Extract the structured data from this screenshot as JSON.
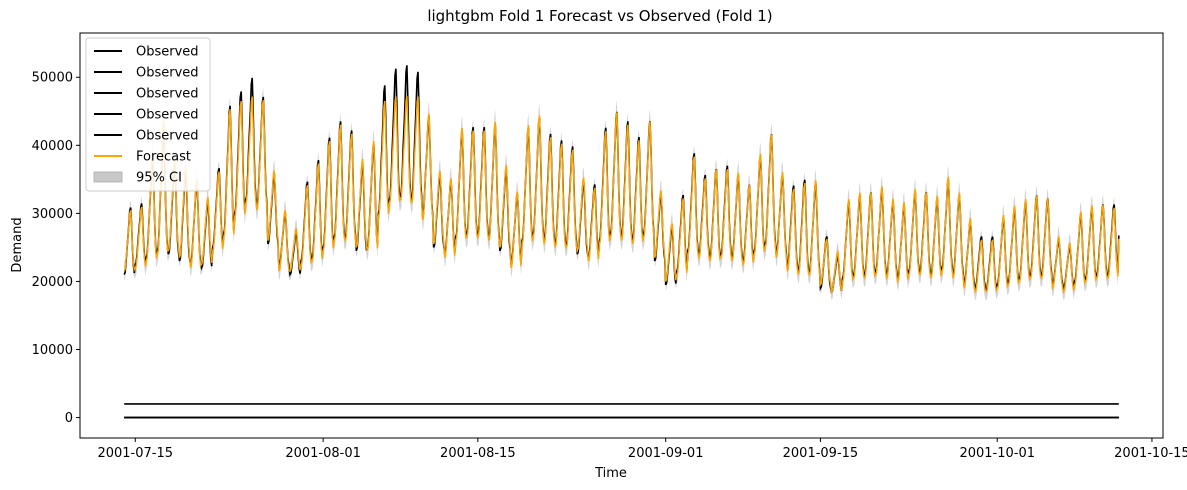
{
  "chart_data": {
    "type": "line",
    "title": "lightgbm Fold 1 Forecast vs Observed (Fold 1)",
    "xlabel": "Time",
    "ylabel": "Demand",
    "xlim": [
      "2001-07-10",
      "2001-10-16"
    ],
    "ylim": [
      -3000,
      56500
    ],
    "x_ticks": [
      "2001-07-15",
      "2001-08-01",
      "2001-08-15",
      "2001-09-01",
      "2001-09-15",
      "2001-10-01",
      "2001-10-15"
    ],
    "y_ticks": [
      0,
      10000,
      20000,
      30000,
      40000,
      50000
    ],
    "x_range": [
      "2001-07-14",
      "2001-10-12"
    ],
    "grid": false,
    "legend_position": "top-left",
    "legend": [
      "Observed",
      "Observed",
      "Observed",
      "Observed",
      "Observed",
      "Forecast",
      "95% CI"
    ],
    "colors": {
      "observed": "#000000",
      "forecast": "#ffa500",
      "ci": "#c8c8c8"
    },
    "flat_series": [
      {
        "name": "Observed",
        "value": 2000
      },
      {
        "name": "Observed",
        "value": 0
      },
      {
        "name": "Observed",
        "value": 0
      },
      {
        "name": "Observed",
        "value": 0
      }
    ],
    "daily_peaks": {
      "dates": [
        "2001-07-14",
        "2001-07-15",
        "2001-07-16",
        "2001-07-17",
        "2001-07-18",
        "2001-07-19",
        "2001-07-20",
        "2001-07-21",
        "2001-07-22",
        "2001-07-23",
        "2001-07-24",
        "2001-07-25",
        "2001-07-26",
        "2001-07-27",
        "2001-07-28",
        "2001-07-29",
        "2001-07-30",
        "2001-07-31",
        "2001-08-01",
        "2001-08-02",
        "2001-08-03",
        "2001-08-04",
        "2001-08-05",
        "2001-08-06",
        "2001-08-07",
        "2001-08-08",
        "2001-08-09",
        "2001-08-10",
        "2001-08-11",
        "2001-08-12",
        "2001-08-13",
        "2001-08-14",
        "2001-08-15",
        "2001-08-16",
        "2001-08-17",
        "2001-08-18",
        "2001-08-19",
        "2001-08-20",
        "2001-08-21",
        "2001-08-22",
        "2001-08-23",
        "2001-08-24",
        "2001-08-25",
        "2001-08-26",
        "2001-08-27",
        "2001-08-28",
        "2001-08-29",
        "2001-08-30",
        "2001-08-31",
        "2001-09-01",
        "2001-09-02",
        "2001-09-03",
        "2001-09-04",
        "2001-09-05",
        "2001-09-06",
        "2001-09-07",
        "2001-09-08",
        "2001-09-09",
        "2001-09-10",
        "2001-09-11",
        "2001-09-12",
        "2001-09-13",
        "2001-09-14",
        "2001-09-15",
        "2001-09-16",
        "2001-09-17",
        "2001-09-18",
        "2001-09-19",
        "2001-09-20",
        "2001-09-21",
        "2001-09-22",
        "2001-09-23",
        "2001-09-24",
        "2001-09-25",
        "2001-09-26",
        "2001-09-27",
        "2001-09-28",
        "2001-09-29",
        "2001-09-30",
        "2001-10-01",
        "2001-10-02",
        "2001-10-03",
        "2001-10-04",
        "2001-10-05",
        "2001-10-06",
        "2001-10-07",
        "2001-10-08",
        "2001-10-09",
        "2001-10-10",
        "2001-10-11"
      ],
      "observed_max": [
        32000,
        32500,
        40000,
        45000,
        39000,
        38000,
        36000,
        33000,
        38000,
        48000,
        50000,
        52000,
        49000,
        37000,
        31000,
        28000,
        36000,
        39500,
        43000,
        45500,
        44000,
        39000,
        42000,
        51000,
        53500,
        54000,
        53000,
        46000,
        37000,
        36000,
        44000,
        44500,
        44500,
        45000,
        38000,
        34000,
        44500,
        46000,
        43500,
        42500,
        41500,
        36000,
        35500,
        44500,
        47000,
        45500,
        43000,
        45500,
        34000,
        29000,
        34000,
        40500,
        37000,
        38000,
        38500,
        37000,
        35500,
        40000,
        43500,
        37000,
        35500,
        36500,
        36000,
        27500,
        24500,
        33000,
        34000,
        34500,
        35000,
        33000,
        32500,
        34500,
        34500,
        33500,
        36500,
        34000,
        30000,
        27500,
        27500,
        30500,
        32000,
        33000,
        34000,
        33500,
        27000,
        26000,
        31000,
        32000,
        32500,
        32500
      ],
      "observed_min": [
        21000,
        22500,
        23500,
        24500,
        24000,
        23000,
        22500,
        22000,
        25000,
        27000,
        30000,
        32000,
        31000,
        25500,
        22000,
        21000,
        23000,
        23500,
        25000,
        26500,
        26500,
        24500,
        25000,
        30000,
        32000,
        32500,
        32000,
        29500,
        25000,
        24000,
        26500,
        27000,
        27000,
        26500,
        24500,
        22500,
        26000,
        27000,
        26000,
        25500,
        25500,
        24000,
        23500,
        26000,
        27000,
        26500,
        26000,
        27000,
        23000,
        19500,
        21500,
        24500,
        24000,
        23500,
        24000,
        23500,
        23000,
        24500,
        25500,
        24000,
        22000,
        21500,
        21500,
        19000,
        18500,
        20500,
        21000,
        21000,
        21500,
        21000,
        20500,
        21500,
        21500,
        21000,
        22000,
        21000,
        19500,
        19000,
        18800,
        19500,
        20000,
        20500,
        21000,
        21000,
        19500,
        19000,
        20000,
        20500,
        21000,
        21000
      ],
      "forecast_max": [
        31500,
        32000,
        40500,
        46000,
        39500,
        38500,
        36500,
        33500,
        37500,
        47500,
        48500,
        49000,
        48500,
        37500,
        31500,
        28500,
        35500,
        39000,
        42500,
        45000,
        43500,
        39500,
        42500,
        48500,
        49000,
        49000,
        49000,
        46500,
        37500,
        36500,
        44500,
        44000,
        44000,
        45500,
        38500,
        34500,
        45000,
        46500,
        43000,
        42000,
        41000,
        36500,
        35000,
        44000,
        47000,
        45000,
        42500,
        45500,
        34500,
        29500,
        33500,
        40000,
        36500,
        38000,
        38000,
        37500,
        35500,
        40500,
        43500,
        37500,
        35000,
        36000,
        36500,
        27000,
        25000,
        33500,
        34500,
        34500,
        35500,
        33500,
        33000,
        35000,
        34500,
        34000,
        37000,
        34500,
        30500,
        27000,
        27000,
        31000,
        32500,
        33500,
        34000,
        33500,
        27500,
        26500,
        31500,
        32500,
        32500,
        32000
      ],
      "forecast_min": [
        21500,
        22000,
        23000,
        24000,
        24500,
        23500,
        22000,
        22500,
        24500,
        26500,
        29500,
        31500,
        30500,
        26000,
        21500,
        21500,
        22500,
        23000,
        24500,
        26000,
        26000,
        25000,
        24500,
        29500,
        31500,
        32000,
        31500,
        29000,
        25500,
        23500,
        26000,
        26500,
        26500,
        26000,
        25000,
        22000,
        25500,
        26500,
        25500,
        25000,
        25000,
        24500,
        23000,
        25500,
        26500,
        26000,
        25500,
        26500,
        23500,
        20000,
        21000,
        24000,
        23500,
        23000,
        23500,
        23000,
        22500,
        24000,
        25000,
        23500,
        21500,
        21000,
        21000,
        19500,
        18500,
        20000,
        20500,
        20500,
        21000,
        20500,
        20000,
        21000,
        21000,
        20500,
        21500,
        20500,
        19000,
        18500,
        18500,
        19000,
        19500,
        20000,
        20500,
        20500,
        19000,
        18500,
        19500,
        20000,
        20500,
        20500
      ]
    }
  }
}
